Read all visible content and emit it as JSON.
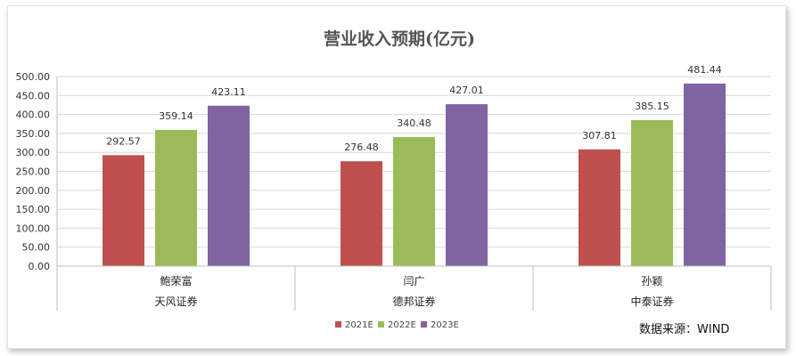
{
  "chart_data": {
    "type": "bar",
    "title": "营业收入预期(亿元)",
    "groups": [
      {
        "label": "天风证券",
        "categories": [
          {
            "analyst": "鲍荣富",
            "values": [
              292.57,
              359.14,
              423.11
            ]
          }
        ]
      },
      {
        "label": "德邦证券",
        "categories": [
          {
            "analyst": "闫广",
            "values": [
              276.48,
              340.48,
              427.01
            ]
          }
        ]
      },
      {
        "label": "中泰证券",
        "categories": [
          {
            "analyst": "孙颖",
            "values": [
              307.81,
              385.15,
              481.44
            ]
          }
        ]
      }
    ],
    "series": [
      {
        "name": "2021E",
        "color": "#c0504d"
      },
      {
        "name": "2022E",
        "color": "#9bbb59"
      },
      {
        "name": "2023E",
        "color": "#8064a2"
      }
    ],
    "ylim": [
      0,
      500
    ],
    "yticks": [
      "0.00",
      "50.00",
      "100.00",
      "150.00",
      "200.00",
      "250.00",
      "300.00",
      "350.00",
      "400.00",
      "450.00",
      "500.00"
    ],
    "grid": true,
    "legend": "bottom"
  },
  "source_note": "数据来源：WIND"
}
